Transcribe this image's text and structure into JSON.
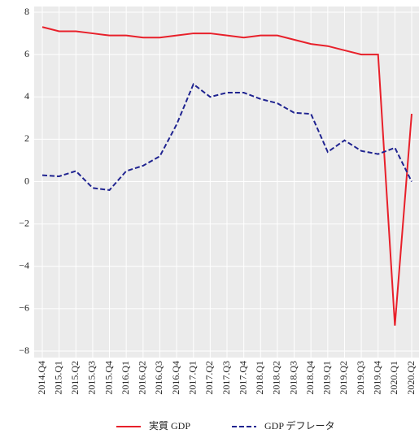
{
  "chart_data": {
    "type": "line",
    "categories": [
      "2014.Q4",
      "2015.Q1",
      "2015.Q2",
      "2015.Q3",
      "2015.Q4",
      "2016.Q1",
      "2016.Q2",
      "2016.Q3",
      "2016.Q4",
      "2017.Q1",
      "2017.Q2",
      "2017.Q3",
      "2017.Q4",
      "2018.Q1",
      "2018.Q2",
      "2018.Q3",
      "2018.Q4",
      "2019.Q1",
      "2019.Q2",
      "2019.Q3",
      "2019.Q4",
      "2020.Q1",
      "2020.Q2"
    ],
    "series": [
      {
        "name": "実質 GDP",
        "color": "#e8202a",
        "dash": "solid",
        "values": [
          7.3,
          7.1,
          7.1,
          7.0,
          6.9,
          6.9,
          6.8,
          6.8,
          6.9,
          7.0,
          7.0,
          6.9,
          6.8,
          6.9,
          6.9,
          6.7,
          6.5,
          6.4,
          6.2,
          6.0,
          6.0,
          -6.8,
          3.2
        ]
      },
      {
        "name": "GDP デフレータ",
        "color": "#1f2390",
        "dash": "dashed",
        "values": [
          0.3,
          0.25,
          0.5,
          -0.3,
          -0.4,
          0.5,
          0.75,
          1.2,
          2.7,
          4.6,
          4.0,
          4.2,
          4.2,
          3.9,
          3.7,
          3.25,
          3.2,
          1.4,
          1.95,
          1.45,
          1.3,
          1.6,
          0.0
        ]
      }
    ],
    "ylim": [
      -8,
      8
    ],
    "yticks": [
      {
        "value": -8,
        "label": "−8"
      },
      {
        "value": -6,
        "label": "−6"
      },
      {
        "value": -4,
        "label": "−4"
      },
      {
        "value": -2,
        "label": "−2"
      },
      0,
      2,
      4,
      6,
      8
    ],
    "grid": true,
    "legend": "bottom"
  }
}
